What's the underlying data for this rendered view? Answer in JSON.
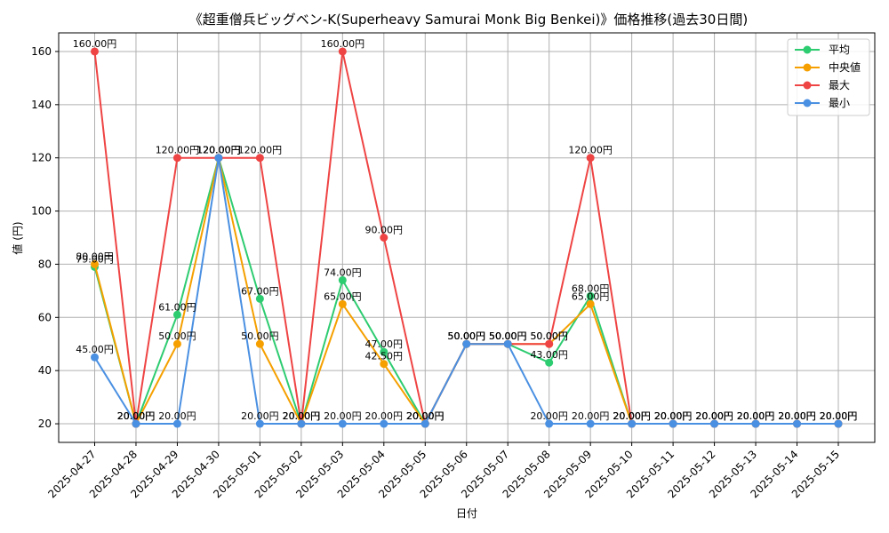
{
  "chart_data": {
    "type": "line",
    "title": "《超重僧兵ビッグベン-K(Superheavy Samurai Monk Big Benkei)》価格推移(過去30日間)",
    "xlabel": "日付",
    "ylabel": "値 (円)",
    "ylim": [
      13,
      167
    ],
    "yticks": [
      20,
      40,
      60,
      80,
      100,
      120,
      140,
      160
    ],
    "grid": true,
    "legend_position": "top-right",
    "value_suffix": "円",
    "categories": [
      "2025-04-27",
      "2025-04-28",
      "2025-04-29",
      "2025-04-30",
      "2025-05-01",
      "2025-05-02",
      "2025-05-03",
      "2025-05-04",
      "2025-05-05",
      "2025-05-06",
      "2025-05-07",
      "2025-05-08",
      "2025-05-09",
      "2025-05-10",
      "2025-05-11",
      "2025-05-12",
      "2025-05-13",
      "2025-05-14",
      "2025-05-15"
    ],
    "series": [
      {
        "name": "平均",
        "color": "#2ecc71",
        "values": [
          79,
          20,
          61,
          120,
          67,
          20,
          74,
          47,
          20,
          50,
          50,
          43,
          68,
          20,
          20,
          20,
          20,
          20,
          20
        ]
      },
      {
        "name": "中央値",
        "color": "#f5a000",
        "values": [
          80,
          20,
          50,
          120,
          50,
          20,
          65,
          42.5,
          20,
          50,
          50,
          50,
          65,
          20,
          20,
          20,
          20,
          20,
          20
        ]
      },
      {
        "name": "最大",
        "color": "#ef4444",
        "values": [
          160,
          20,
          120,
          120,
          120,
          20,
          160,
          90,
          20,
          50,
          50,
          50,
          120,
          20,
          20,
          20,
          20,
          20,
          20
        ]
      },
      {
        "name": "最小",
        "color": "#4a90e2",
        "values": [
          45,
          20,
          20,
          120,
          20,
          20,
          20,
          20,
          20,
          50,
          50,
          20,
          20,
          20,
          20,
          20,
          20,
          20,
          20
        ]
      }
    ]
  }
}
